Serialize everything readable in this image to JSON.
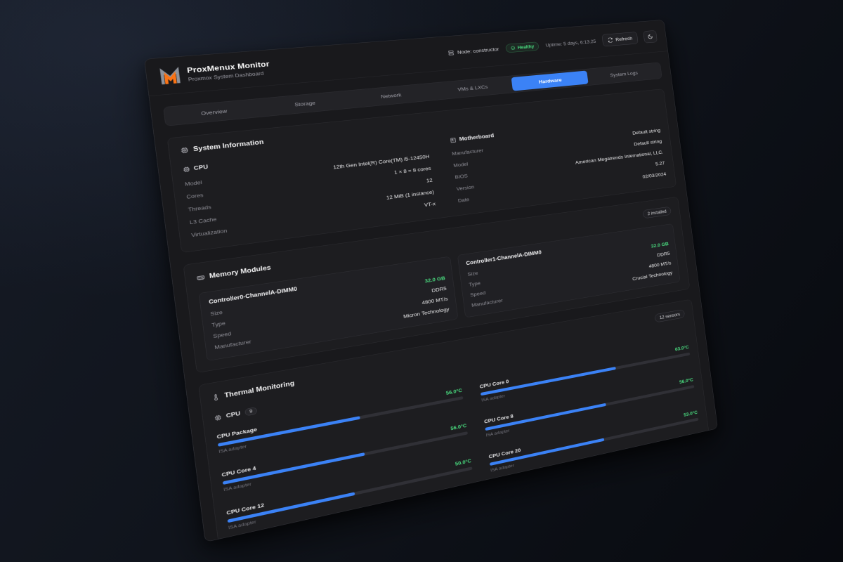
{
  "theme": {
    "accent": "#3b82f6",
    "green": "#4ade80",
    "card_bg": "#1d1d20"
  },
  "header": {
    "title": "ProxMenux Monitor",
    "subtitle": "Proxmox System Dashboard",
    "node_label": "Node: constructor",
    "health_label": "Healthy",
    "uptime": "Uptime: 5 days, 6:13:25",
    "refresh_label": "Refresh"
  },
  "tabs": [
    {
      "label": "Overview",
      "active": false
    },
    {
      "label": "Storage",
      "active": false
    },
    {
      "label": "Network",
      "active": false
    },
    {
      "label": "VMs & LXCs",
      "active": false
    },
    {
      "label": "Hardware",
      "active": true
    },
    {
      "label": "System Logs",
      "active": false
    }
  ],
  "system_information": {
    "title": "System Information",
    "cpu": {
      "title": "CPU",
      "rows": [
        {
          "label": "Model",
          "value": "12th Gen Intel(R) Core(TM) i5-12450H"
        },
        {
          "label": "Cores",
          "value": "1 × 8 = 8 cores"
        },
        {
          "label": "Threads",
          "value": "12"
        },
        {
          "label": "L3 Cache",
          "value": "12 MiB (1 instance)"
        },
        {
          "label": "Virtualization",
          "value": "VT-x"
        }
      ]
    },
    "motherboard": {
      "title": "Motherboard",
      "rows": [
        {
          "label": "Manufacturer",
          "value": "Default string"
        },
        {
          "label": "Model",
          "value": "Default string"
        },
        {
          "label": "BIOS",
          "value": "American Megatrends International, LLC."
        },
        {
          "label": "Version",
          "value": "5.27"
        },
        {
          "label": "Date",
          "value": "02/03/2024"
        }
      ]
    }
  },
  "memory": {
    "title": "Memory Modules",
    "badge": "2 installed",
    "modules": [
      {
        "name": "Controller0-ChannelA-DIMM0",
        "rows": [
          {
            "label": "Size",
            "value": "32.0 GB"
          },
          {
            "label": "Type",
            "value": "DDR5"
          },
          {
            "label": "Speed",
            "value": "4800 MT/s"
          },
          {
            "label": "Manufacturer",
            "value": "Micron Technology"
          }
        ]
      },
      {
        "name": "Controller1-ChannelA-DIMM0",
        "rows": [
          {
            "label": "Size",
            "value": "32.0 GB"
          },
          {
            "label": "Type",
            "value": "DDR5"
          },
          {
            "label": "Speed",
            "value": "4800 MT/s"
          },
          {
            "label": "Manufacturer",
            "value": "Crucial Technology"
          }
        ]
      }
    ]
  },
  "thermal": {
    "title": "Thermal Monitoring",
    "badge": "12 sensors",
    "group": {
      "label": "CPU",
      "count": "9"
    },
    "sensors": [
      {
        "name": "CPU Package",
        "temp": "56.0°C",
        "percent": 56,
        "adapter": "ISA adapter"
      },
      {
        "name": "CPU Core 0",
        "temp": "63.0°C",
        "percent": 63,
        "adapter": "ISA adapter"
      },
      {
        "name": "CPU Core 4",
        "temp": "56.0°C",
        "percent": 56,
        "adapter": "ISA adapter"
      },
      {
        "name": "CPU Core 8",
        "temp": "56.0°C",
        "percent": 56,
        "adapter": "ISA adapter"
      },
      {
        "name": "CPU Core 12",
        "temp": "50.0°C",
        "percent": 50,
        "adapter": "ISA adapter"
      },
      {
        "name": "CPU Core 20",
        "temp": "53.0°C",
        "percent": 53,
        "adapter": "ISA adapter"
      }
    ]
  }
}
